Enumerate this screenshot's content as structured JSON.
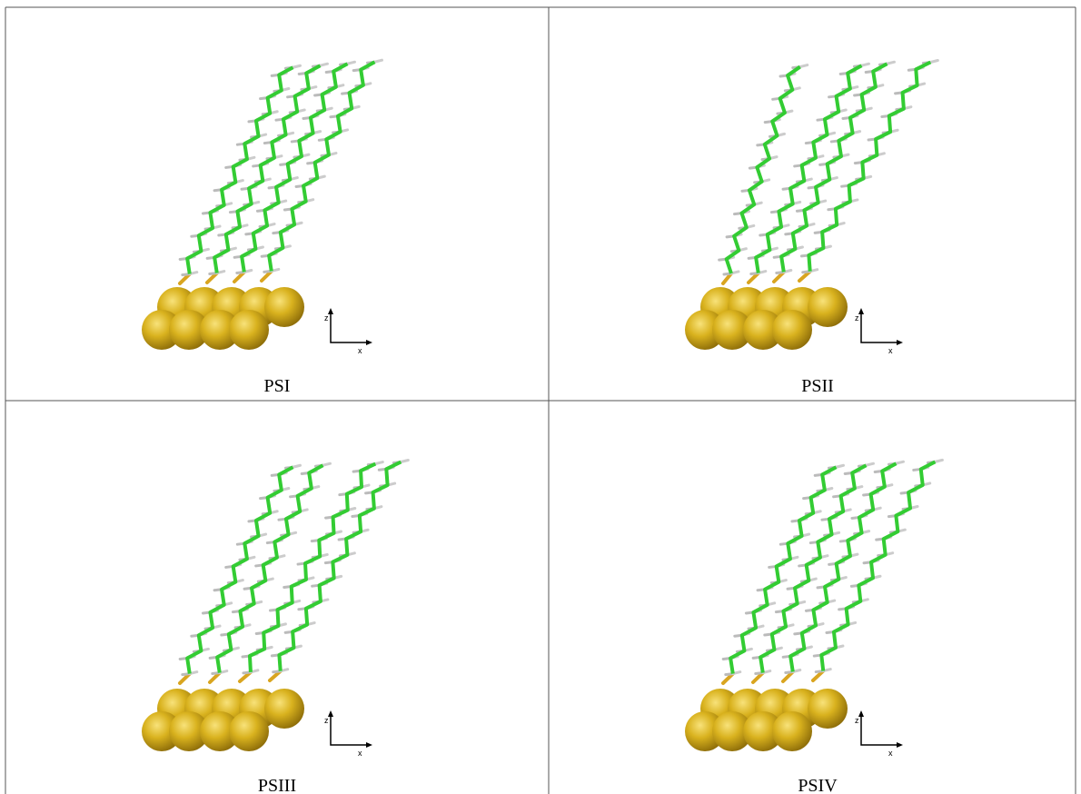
{
  "cells": [
    {
      "label": "PSI",
      "axis_labels": [
        "z",
        "x"
      ]
    },
    {
      "label": "PSII",
      "axis_labels": [
        "z",
        "x"
      ]
    },
    {
      "label": "PSIII",
      "axis_labels": [
        "z",
        "x"
      ]
    },
    {
      "label": "PSIV",
      "axis_labels": [
        "z",
        "x"
      ]
    }
  ]
}
